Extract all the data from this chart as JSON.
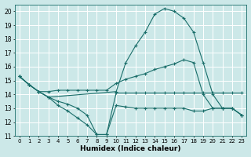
{
  "xlabel": "Humidex (Indice chaleur)",
  "bg_color": "#cce8e8",
  "line_color": "#1a6e6a",
  "grid_color": "#ffffff",
  "ylim": [
    11,
    20.5
  ],
  "xlim": [
    -0.5,
    23.5
  ],
  "yticks": [
    11,
    12,
    13,
    14,
    15,
    16,
    17,
    18,
    19,
    20
  ],
  "xticks": [
    0,
    1,
    2,
    3,
    4,
    5,
    6,
    7,
    8,
    9,
    10,
    11,
    12,
    13,
    14,
    15,
    16,
    17,
    18,
    19,
    20,
    21,
    22,
    23
  ],
  "lines": [
    {
      "x": [
        0,
        1,
        2,
        3,
        4,
        5,
        6,
        7,
        8,
        9,
        10,
        11,
        12,
        13,
        14,
        15,
        16,
        17,
        18,
        19,
        20,
        21,
        22,
        23
      ],
      "y": [
        15.3,
        14.7,
        14.2,
        13.8,
        13.5,
        13.3,
        13.0,
        12.5,
        11.1,
        11.1,
        14.1,
        14.1,
        14.1,
        14.1,
        14.1,
        14.1,
        14.1,
        14.1,
        14.1,
        14.1,
        14.1,
        14.1,
        14.1,
        14.1
      ]
    },
    {
      "x": [
        0,
        1,
        2,
        3,
        4,
        5,
        6,
        7,
        8,
        9,
        10,
        11,
        12,
        13,
        14,
        15,
        16,
        17,
        18,
        19,
        20,
        21,
        22,
        23
      ],
      "y": [
        15.3,
        14.7,
        14.2,
        13.8,
        13.2,
        12.8,
        12.3,
        11.8,
        11.1,
        11.1,
        13.2,
        13.1,
        13.0,
        13.0,
        13.0,
        13.0,
        13.0,
        13.0,
        12.8,
        12.8,
        13.0,
        13.0,
        13.0,
        12.5
      ]
    },
    {
      "x": [
        0,
        1,
        2,
        3,
        4,
        5,
        6,
        7,
        8,
        9,
        10,
        11,
        12,
        13,
        14,
        15,
        16,
        17,
        18,
        19,
        20,
        21,
        22,
        23
      ],
      "y": [
        15.3,
        14.7,
        14.2,
        14.2,
        14.3,
        14.3,
        14.3,
        14.3,
        14.3,
        14.3,
        14.8,
        15.1,
        15.3,
        15.5,
        15.8,
        16.0,
        16.2,
        16.5,
        16.3,
        14.0,
        13.0,
        13.0,
        13.0,
        12.5
      ]
    },
    {
      "x": [
        0,
        1,
        2,
        3,
        10,
        11,
        12,
        13,
        14,
        15,
        16,
        17,
        18,
        19,
        20,
        21,
        22,
        23
      ],
      "y": [
        15.3,
        14.7,
        14.2,
        13.8,
        14.2,
        16.3,
        17.5,
        18.5,
        19.8,
        20.2,
        20.0,
        19.5,
        18.5,
        16.3,
        14.0,
        13.0,
        13.0,
        12.5
      ]
    }
  ]
}
